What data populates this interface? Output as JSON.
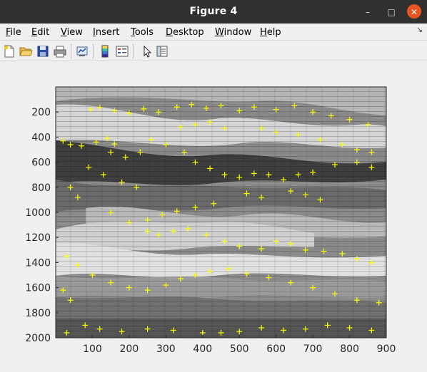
{
  "window": {
    "title": "Figure 4",
    "buttons": {
      "minimize": "–",
      "maximize": "□",
      "close": "✕"
    }
  },
  "menubar": {
    "items": [
      {
        "id": "file",
        "label": "File",
        "mnemonic": "F",
        "rest": "ile"
      },
      {
        "id": "edit",
        "label": "Edit",
        "mnemonic": "E",
        "rest": "dit"
      },
      {
        "id": "view",
        "label": "View",
        "mnemonic": "V",
        "rest": "iew"
      },
      {
        "id": "insert",
        "label": "Insert",
        "mnemonic": "I",
        "rest": "nsert"
      },
      {
        "id": "tools",
        "label": "Tools",
        "mnemonic": "T",
        "rest": "ools"
      },
      {
        "id": "desktop",
        "label": "Desktop",
        "mnemonic": "D",
        "rest": "esktop"
      },
      {
        "id": "window",
        "label": "Window",
        "mnemonic": "W",
        "rest": "indow"
      },
      {
        "id": "help",
        "label": "Help",
        "mnemonic": "H",
        "rest": "elp"
      }
    ],
    "dock_icon": "↘"
  },
  "toolbar": {
    "icons": [
      "new-figure-icon",
      "open-file-icon",
      "save-icon",
      "print-icon",
      "link-plot-icon",
      "insert-colorbar-icon",
      "insert-legend-icon",
      "edit-plot-pointer-icon",
      "property-inspector-icon"
    ]
  },
  "colors": {
    "marker": "#ffff00",
    "axes_text": "#262626"
  },
  "chart_data": {
    "type": "scatter",
    "marker": "+",
    "background": "grayscale image",
    "xlim": [
      0,
      900
    ],
    "ylim": [
      2000,
      0
    ],
    "y_reversed": true,
    "xticks": [
      100,
      200,
      300,
      400,
      500,
      600,
      700,
      800,
      900
    ],
    "yticks": [
      200,
      400,
      600,
      800,
      1000,
      1200,
      1400,
      1600,
      1800,
      2000
    ],
    "series": [
      {
        "points": [
          [
            95,
            180
          ],
          [
            120,
            165
          ],
          [
            160,
            190
          ],
          [
            200,
            210
          ],
          [
            240,
            175
          ],
          [
            280,
            200
          ],
          [
            330,
            160
          ],
          [
            370,
            140
          ],
          [
            410,
            170
          ],
          [
            450,
            150
          ],
          [
            500,
            190
          ],
          [
            540,
            160
          ],
          [
            600,
            180
          ],
          [
            650,
            150
          ],
          [
            700,
            200
          ],
          [
            750,
            230
          ],
          [
            800,
            260
          ],
          [
            850,
            300
          ],
          [
            20,
            430
          ],
          [
            40,
            460
          ],
          [
            70,
            470
          ],
          [
            110,
            440
          ],
          [
            140,
            410
          ],
          [
            160,
            455
          ],
          [
            260,
            420
          ],
          [
            300,
            460
          ],
          [
            350,
            520
          ],
          [
            380,
            600
          ],
          [
            420,
            650
          ],
          [
            460,
            700
          ],
          [
            500,
            720
          ],
          [
            540,
            690
          ],
          [
            580,
            700
          ],
          [
            620,
            740
          ],
          [
            660,
            700
          ],
          [
            700,
            680
          ],
          [
            760,
            620
          ],
          [
            820,
            600
          ],
          [
            860,
            640
          ],
          [
            90,
            640
          ],
          [
            130,
            700
          ],
          [
            180,
            760
          ],
          [
            220,
            800
          ],
          [
            40,
            800
          ],
          [
            60,
            880
          ],
          [
            150,
            1000
          ],
          [
            200,
            1080
          ],
          [
            250,
            1150
          ],
          [
            280,
            1180
          ],
          [
            320,
            1150
          ],
          [
            360,
            1130
          ],
          [
            410,
            1180
          ],
          [
            460,
            1230
          ],
          [
            500,
            1270
          ],
          [
            560,
            1290
          ],
          [
            600,
            1230
          ],
          [
            640,
            1250
          ],
          [
            680,
            1300
          ],
          [
            730,
            1310
          ],
          [
            780,
            1330
          ],
          [
            820,
            1370
          ],
          [
            860,
            1400
          ],
          [
            30,
            1350
          ],
          [
            60,
            1420
          ],
          [
            100,
            1500
          ],
          [
            150,
            1560
          ],
          [
            200,
            1600
          ],
          [
            250,
            1620
          ],
          [
            300,
            1580
          ],
          [
            340,
            1530
          ],
          [
            380,
            1500
          ],
          [
            420,
            1470
          ],
          [
            470,
            1450
          ],
          [
            520,
            1490
          ],
          [
            580,
            1520
          ],
          [
            640,
            1560
          ],
          [
            700,
            1600
          ],
          [
            760,
            1650
          ],
          [
            820,
            1700
          ],
          [
            880,
            1720
          ],
          [
            20,
            1620
          ],
          [
            40,
            1700
          ],
          [
            80,
            1900
          ],
          [
            120,
            1930
          ],
          [
            180,
            1950
          ],
          [
            250,
            1930
          ],
          [
            320,
            1940
          ],
          [
            400,
            1960
          ],
          [
            450,
            1960
          ],
          [
            500,
            1950
          ],
          [
            560,
            1920
          ],
          [
            620,
            1940
          ],
          [
            680,
            1930
          ],
          [
            740,
            1900
          ],
          [
            800,
            1920
          ],
          [
            860,
            1940
          ],
          [
            30,
            1960
          ],
          [
            150,
            520
          ],
          [
            190,
            560
          ],
          [
            230,
            520
          ],
          [
            640,
            830
          ],
          [
            680,
            860
          ],
          [
            720,
            900
          ],
          [
            520,
            850
          ],
          [
            560,
            880
          ],
          [
            340,
            320
          ],
          [
            380,
            300
          ],
          [
            420,
            280
          ],
          [
            460,
            330
          ],
          [
            560,
            330
          ],
          [
            600,
            360
          ],
          [
            660,
            380
          ],
          [
            720,
            420
          ],
          [
            780,
            460
          ],
          [
            820,
            500
          ],
          [
            860,
            520
          ],
          [
            250,
            1060
          ],
          [
            290,
            1020
          ],
          [
            330,
            990
          ],
          [
            380,
            960
          ],
          [
            430,
            930
          ]
        ]
      }
    ]
  }
}
